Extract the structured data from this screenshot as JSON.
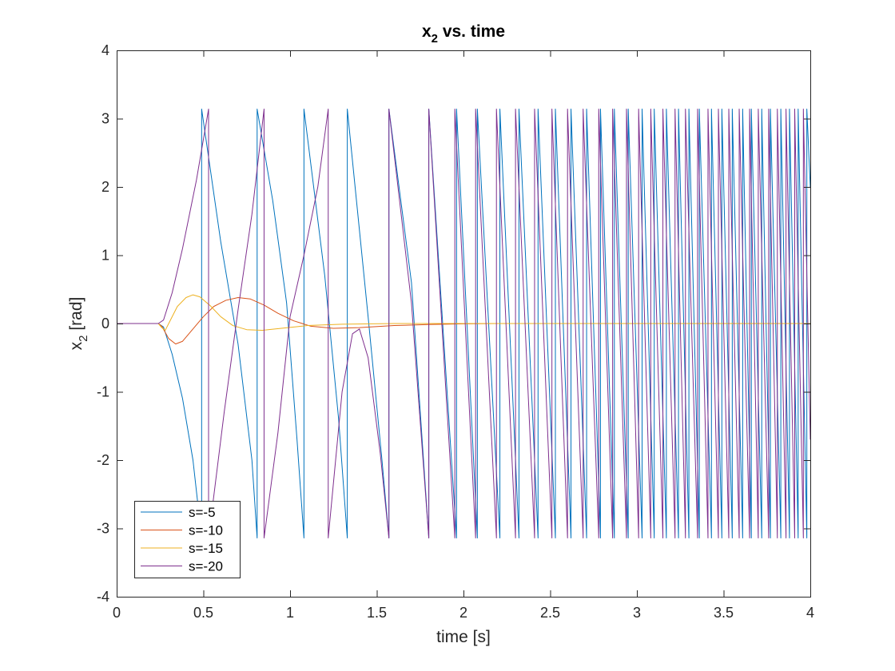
{
  "chart_data": {
    "type": "line",
    "title": "x2 vs. time",
    "title_main": "x",
    "title_sub": "2",
    "title_rest": " vs. time",
    "xlabel": "time [s]",
    "ylabel": "x2 [rad]",
    "ylabel_main": "x",
    "ylabel_sub": "2",
    "ylabel_rest": " [rad]",
    "xlim": [
      0,
      4
    ],
    "ylim": [
      -4,
      4
    ],
    "xticks": [
      0,
      0.5,
      1,
      1.5,
      2,
      2.5,
      3,
      3.5,
      4
    ],
    "xtick_labels": [
      "0",
      "0.5",
      "1",
      "1.5",
      "2",
      "2.5",
      "3",
      "3.5",
      "4"
    ],
    "yticks": [
      -4,
      -3,
      -2,
      -1,
      0,
      1,
      2,
      3,
      4
    ],
    "ytick_labels": [
      "-4",
      "-3",
      "-2",
      "-1",
      "0",
      "1",
      "2",
      "3",
      "4"
    ],
    "grid": false,
    "legend_position": "bottom-left",
    "series": [
      {
        "name": "s=-5",
        "color": "#0072BD",
        "kind": "wrapping",
        "description": "Angle wraps between -pi and pi with increasing frequency",
        "points": [
          [
            0,
            0
          ],
          [
            0.24,
            0
          ],
          [
            0.27,
            -0.05
          ],
          [
            0.32,
            -0.45
          ],
          [
            0.38,
            -1.1
          ],
          [
            0.44,
            -2.0
          ],
          [
            0.49,
            -3.14
          ],
          [
            0.49,
            3.14
          ],
          [
            0.6,
            1.2
          ],
          [
            0.7,
            -0.3
          ],
          [
            0.78,
            -2.0
          ],
          [
            0.81,
            -3.14
          ],
          [
            0.81,
            3.14
          ],
          [
            0.9,
            1.8
          ],
          [
            0.98,
            0.3
          ],
          [
            1.04,
            -1.7
          ],
          [
            1.08,
            -3.14
          ],
          [
            1.08,
            3.14
          ],
          [
            1.2,
            0.7
          ],
          [
            1.28,
            -1.4
          ],
          [
            1.33,
            -3.14
          ],
          [
            1.33,
            3.14
          ],
          [
            1.45,
            0.1
          ],
          [
            1.53,
            -2.0
          ],
          [
            1.57,
            -3.14
          ],
          [
            1.57,
            3.14
          ],
          [
            1.7,
            0.6
          ],
          [
            1.8,
            -3.14
          ],
          [
            1.8,
            3.14
          ],
          [
            1.96,
            -3.14
          ],
          [
            1.96,
            3.14
          ],
          [
            2.08,
            -3.14
          ],
          [
            2.08,
            3.14
          ],
          [
            2.21,
            -3.14
          ],
          [
            2.21,
            3.14
          ],
          [
            2.32,
            -3.14
          ],
          [
            2.32,
            3.14
          ],
          [
            2.43,
            -3.14
          ],
          [
            2.43,
            3.14
          ],
          [
            2.53,
            -3.14
          ],
          [
            2.53,
            3.14
          ],
          [
            2.62,
            -3.14
          ],
          [
            2.62,
            3.14
          ],
          [
            2.71,
            -3.14
          ],
          [
            2.71,
            3.14
          ],
          [
            2.79,
            -3.14
          ],
          [
            2.79,
            3.14
          ],
          [
            2.87,
            -3.14
          ],
          [
            2.87,
            3.14
          ],
          [
            2.95,
            -3.14
          ],
          [
            2.95,
            3.14
          ],
          [
            3.03,
            -3.14
          ],
          [
            3.03,
            3.14
          ],
          [
            3.1,
            -3.14
          ],
          [
            3.1,
            3.14
          ],
          [
            3.17,
            -3.14
          ],
          [
            3.17,
            3.14
          ],
          [
            3.24,
            -3.14
          ],
          [
            3.24,
            3.14
          ],
          [
            3.3,
            -3.14
          ],
          [
            3.3,
            3.14
          ],
          [
            3.36,
            -3.14
          ],
          [
            3.36,
            3.14
          ],
          [
            3.43,
            -3.14
          ],
          [
            3.43,
            3.14
          ],
          [
            3.49,
            -3.14
          ],
          [
            3.49,
            3.14
          ],
          [
            3.55,
            -3.14
          ],
          [
            3.55,
            3.14
          ],
          [
            3.61,
            -3.14
          ],
          [
            3.61,
            3.14
          ],
          [
            3.66,
            -3.14
          ],
          [
            3.66,
            3.14
          ],
          [
            3.72,
            -3.14
          ],
          [
            3.72,
            3.14
          ],
          [
            3.77,
            -3.14
          ],
          [
            3.77,
            3.14
          ],
          [
            3.83,
            -3.14
          ],
          [
            3.83,
            3.14
          ],
          [
            3.88,
            -3.14
          ],
          [
            3.88,
            3.14
          ],
          [
            3.93,
            -3.14
          ],
          [
            3.93,
            3.14
          ],
          [
            3.98,
            -3.14
          ],
          [
            3.98,
            3.14
          ],
          [
            4.0,
            2.0
          ]
        ]
      },
      {
        "name": "s=-10",
        "color": "#D95319",
        "kind": "smooth",
        "points": [
          [
            0,
            0
          ],
          [
            0.24,
            0
          ],
          [
            0.26,
            -0.04
          ],
          [
            0.3,
            -0.22
          ],
          [
            0.34,
            -0.3
          ],
          [
            0.38,
            -0.26
          ],
          [
            0.44,
            -0.08
          ],
          [
            0.5,
            0.1
          ],
          [
            0.56,
            0.25
          ],
          [
            0.63,
            0.34
          ],
          [
            0.7,
            0.38
          ],
          [
            0.77,
            0.36
          ],
          [
            0.85,
            0.27
          ],
          [
            0.93,
            0.15
          ],
          [
            1.02,
            0.04
          ],
          [
            1.12,
            -0.04
          ],
          [
            1.25,
            -0.07
          ],
          [
            1.4,
            -0.06
          ],
          [
            1.6,
            -0.03
          ],
          [
            1.8,
            -0.015
          ],
          [
            2.0,
            -0.005
          ],
          [
            2.2,
            0
          ],
          [
            4.0,
            0
          ]
        ]
      },
      {
        "name": "s=-15",
        "color": "#EDB120",
        "kind": "smooth",
        "points": [
          [
            0,
            0
          ],
          [
            0.24,
            0
          ],
          [
            0.26,
            -0.06
          ],
          [
            0.28,
            -0.1
          ],
          [
            0.31,
            0.05
          ],
          [
            0.35,
            0.25
          ],
          [
            0.4,
            0.38
          ],
          [
            0.44,
            0.42
          ],
          [
            0.48,
            0.39
          ],
          [
            0.54,
            0.26
          ],
          [
            0.6,
            0.1
          ],
          [
            0.67,
            -0.03
          ],
          [
            0.75,
            -0.09
          ],
          [
            0.84,
            -0.1
          ],
          [
            0.95,
            -0.07
          ],
          [
            1.1,
            -0.03
          ],
          [
            1.3,
            -0.01
          ],
          [
            1.6,
            0
          ],
          [
            4.0,
            0
          ]
        ]
      },
      {
        "name": "s=-20",
        "color": "#7E2F8E",
        "kind": "wrapping",
        "points": [
          [
            0,
            0
          ],
          [
            0.24,
            0
          ],
          [
            0.27,
            0.05
          ],
          [
            0.32,
            0.45
          ],
          [
            0.38,
            1.1
          ],
          [
            0.46,
            2.1
          ],
          [
            0.53,
            3.14
          ],
          [
            0.53,
            -3.14
          ],
          [
            0.62,
            -1.3
          ],
          [
            0.7,
            0.2
          ],
          [
            0.78,
            1.6
          ],
          [
            0.85,
            3.14
          ],
          [
            0.85,
            -3.14
          ],
          [
            0.93,
            -1.6
          ],
          [
            1.0,
            0.1
          ],
          [
            1.08,
            1.0
          ],
          [
            1.16,
            2.0
          ],
          [
            1.22,
            3.14
          ],
          [
            1.22,
            -3.14
          ],
          [
            1.3,
            -1.0
          ],
          [
            1.36,
            -0.15
          ],
          [
            1.4,
            -0.08
          ],
          [
            1.45,
            -0.5
          ],
          [
            1.52,
            -1.9
          ],
          [
            1.57,
            -3.14
          ],
          [
            1.57,
            3.14
          ],
          [
            1.7,
            0.3
          ],
          [
            1.8,
            -3.14
          ],
          [
            1.8,
            3.14
          ],
          [
            1.95,
            -3.14
          ],
          [
            1.95,
            3.14
          ],
          [
            2.07,
            -3.14
          ],
          [
            2.07,
            3.14
          ],
          [
            2.19,
            -3.14
          ],
          [
            2.19,
            3.14
          ],
          [
            2.3,
            -3.14
          ],
          [
            2.3,
            3.14
          ],
          [
            2.41,
            -3.14
          ],
          [
            2.41,
            3.14
          ],
          [
            2.51,
            -3.14
          ],
          [
            2.51,
            3.14
          ],
          [
            2.6,
            -3.14
          ],
          [
            2.6,
            3.14
          ],
          [
            2.69,
            -3.14
          ],
          [
            2.69,
            3.14
          ],
          [
            2.78,
            -3.14
          ],
          [
            2.78,
            3.14
          ],
          [
            2.86,
            -3.14
          ],
          [
            2.86,
            3.14
          ],
          [
            2.94,
            -3.14
          ],
          [
            2.94,
            3.14
          ],
          [
            3.01,
            -3.14
          ],
          [
            3.01,
            3.14
          ],
          [
            3.08,
            -3.14
          ],
          [
            3.08,
            3.14
          ],
          [
            3.15,
            -3.14
          ],
          [
            3.15,
            3.14
          ],
          [
            3.22,
            -3.14
          ],
          [
            3.22,
            3.14
          ],
          [
            3.28,
            -3.14
          ],
          [
            3.28,
            3.14
          ],
          [
            3.35,
            -3.14
          ],
          [
            3.35,
            3.14
          ],
          [
            3.41,
            -3.14
          ],
          [
            3.41,
            3.14
          ],
          [
            3.47,
            -3.14
          ],
          [
            3.47,
            3.14
          ],
          [
            3.53,
            -3.14
          ],
          [
            3.53,
            3.14
          ],
          [
            3.59,
            -3.14
          ],
          [
            3.59,
            3.14
          ],
          [
            3.65,
            -3.14
          ],
          [
            3.65,
            3.14
          ],
          [
            3.7,
            -3.14
          ],
          [
            3.7,
            3.14
          ],
          [
            3.76,
            -3.14
          ],
          [
            3.76,
            3.14
          ],
          [
            3.81,
            -3.14
          ],
          [
            3.81,
            3.14
          ],
          [
            3.86,
            -3.14
          ],
          [
            3.86,
            3.14
          ],
          [
            3.91,
            -3.14
          ],
          [
            3.91,
            3.14
          ],
          [
            3.96,
            -3.14
          ],
          [
            3.96,
            3.14
          ],
          [
            4.0,
            -1.7
          ]
        ]
      }
    ]
  }
}
